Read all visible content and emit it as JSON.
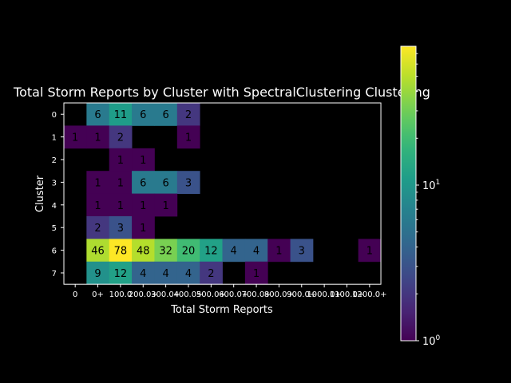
{
  "chart_data": {
    "type": "heatmap",
    "title": "Total Storm Reports by Cluster with SpectralClustering Clustering",
    "xlabel": "Total Storm Reports",
    "ylabel": "Cluster",
    "x_categories": [
      "0",
      "0+",
      "100.0",
      "200.0+",
      "300.0+",
      "400.0+",
      "500.0+",
      "600.0+",
      "700.0+",
      "800.0+",
      "900.0+",
      "1000.0+",
      "1100.0+",
      "1200.0+"
    ],
    "x_tick_labels": [
      "0",
      "0+",
      "100.0",
      "200.0+",
      "300.0+",
      "400.0+",
      "500.0+",
      "600.0+",
      "700.0+",
      "800.0+",
      "900.0+",
      "1000.0+",
      "1100.0+",
      "1200.0+"
    ],
    "y_categories": [
      "0",
      "1",
      "2",
      "3",
      "4",
      "5",
      "6",
      "7"
    ],
    "values": [
      [
        null,
        6,
        11,
        6,
        6,
        2,
        null,
        null,
        null,
        null,
        null,
        null,
        null,
        null
      ],
      [
        1,
        1,
        2,
        null,
        null,
        1,
        null,
        null,
        null,
        null,
        null,
        null,
        null,
        null
      ],
      [
        null,
        null,
        1,
        1,
        null,
        null,
        null,
        null,
        null,
        null,
        null,
        null,
        null,
        null
      ],
      [
        null,
        1,
        1,
        6,
        6,
        3,
        null,
        null,
        null,
        null,
        null,
        null,
        null,
        null
      ],
      [
        null,
        1,
        1,
        1,
        1,
        null,
        null,
        null,
        null,
        null,
        null,
        null,
        null,
        null
      ],
      [
        null,
        2,
        3,
        1,
        null,
        null,
        null,
        null,
        null,
        null,
        null,
        null,
        null,
        null
      ],
      [
        null,
        46,
        78,
        48,
        32,
        20,
        12,
        4,
        4,
        1,
        3,
        null,
        null,
        1
      ],
      [
        null,
        9,
        12,
        4,
        4,
        4,
        2,
        null,
        1,
        null,
        null,
        null,
        null,
        null
      ]
    ],
    "colormap": "viridis",
    "color_scale": "log",
    "color_range": [
      1,
      78
    ],
    "colorbar_ticks": [
      {
        "value": 1,
        "base": "10",
        "exp": "0"
      },
      {
        "value": 10,
        "base": "10",
        "exp": "1"
      }
    ],
    "grid": false
  },
  "colors": {
    "background": "#000000",
    "text": "#ffffff",
    "cell_text": "#000000"
  }
}
